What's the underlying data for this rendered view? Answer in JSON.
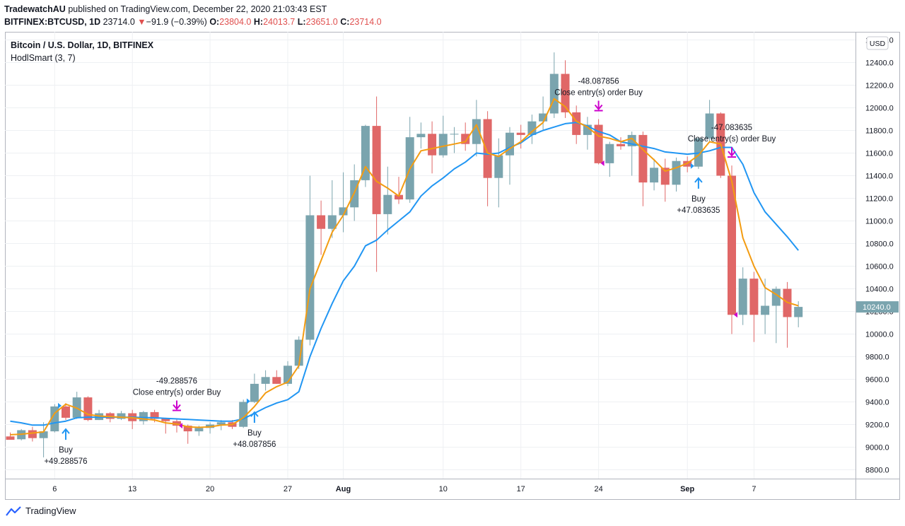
{
  "header": {
    "publisher": "TradewatchAU",
    "published_text": "published on TradingView.com, December 22, 2020 21:03:43 EST",
    "symbol": "BITFINEX:BTCUSD, 1D",
    "last": "23714.0",
    "change": "−91.9 (−0.39%)",
    "o_label": "O:",
    "o": "23804.0",
    "h_label": "H:",
    "h": "24013.7",
    "l_label": "L:",
    "l": "23651.0",
    "c_label": "C:",
    "c": "23714.0"
  },
  "legend": {
    "title": "Bitcoin / U.S. Dollar, 1D, BITFINEX",
    "indicator": "HodlSmart (3, 7)"
  },
  "footer": {
    "brand": "TradingView"
  },
  "colors": {
    "up": "#7aa4ae",
    "down": "#e06767",
    "fast_ma": "#f39c12",
    "slow_ma": "#2196f3",
    "signal_buy": "#2196f3",
    "signal_close": "#cc00cc"
  },
  "chart_data": {
    "type": "candlestick",
    "currency_button": "USD",
    "price_label": "10240.0",
    "y_ticks": [
      "8800.0",
      "9000.0",
      "9200.0",
      "9400.0",
      "9600.0",
      "9800.0",
      "10000.0",
      "10200.0",
      "10400.0",
      "10600.0",
      "10800.0",
      "11000.0",
      "11200.0",
      "11400.0",
      "11600.0",
      "11800.0",
      "12000.0",
      "12200.0",
      "12400.0",
      "12600.0"
    ],
    "ylim": [
      8680,
      12700
    ],
    "x_ticks": [
      {
        "label": "6",
        "i": 4,
        "bold": false
      },
      {
        "label": "13",
        "i": 11,
        "bold": false
      },
      {
        "label": "20",
        "i": 18,
        "bold": false
      },
      {
        "label": "27",
        "i": 25,
        "bold": false
      },
      {
        "label": "Aug",
        "i": 30,
        "bold": true
      },
      {
        "label": "10",
        "i": 39,
        "bold": false
      },
      {
        "label": "17",
        "i": 46,
        "bold": false
      },
      {
        "label": "24",
        "i": 53,
        "bold": false
      },
      {
        "label": "Sep",
        "i": 61,
        "bold": true
      },
      {
        "label": "7",
        "i": 67,
        "bold": false
      }
    ],
    "candles": [
      [
        9095,
        9130,
        9070,
        9065
      ],
      [
        9070,
        9160,
        9060,
        9150
      ],
      [
        9150,
        9180,
        9050,
        9080
      ],
      [
        9080,
        9220,
        8910,
        9140
      ],
      [
        9140,
        9380,
        9130,
        9360
      ],
      [
        9360,
        9390,
        9240,
        9260
      ],
      [
        9260,
        9490,
        9250,
        9440
      ],
      [
        9440,
        9450,
        9230,
        9240
      ],
      [
        9240,
        9330,
        9240,
        9300
      ],
      [
        9300,
        9310,
        9220,
        9250
      ],
      [
        9250,
        9320,
        9240,
        9300
      ],
      [
        9300,
        9330,
        9160,
        9230
      ],
      [
        9230,
        9320,
        9200,
        9310
      ],
      [
        9310,
        9330,
        9220,
        9250
      ],
      [
        9250,
        9260,
        9120,
        9230
      ],
      [
        9230,
        9250,
        9130,
        9190
      ],
      [
        9190,
        9200,
        9030,
        9140
      ],
      [
        9140,
        9190,
        9100,
        9170
      ],
      [
        9170,
        9220,
        9120,
        9200
      ],
      [
        9200,
        9240,
        9150,
        9220
      ],
      [
        9220,
        9240,
        9160,
        9180
      ],
      [
        9180,
        9420,
        9170,
        9400
      ],
      [
        9400,
        9650,
        9390,
        9560
      ],
      [
        9560,
        9680,
        9500,
        9620
      ],
      [
        9620,
        9680,
        9560,
        9560
      ],
      [
        9560,
        9760,
        9540,
        9720
      ],
      [
        9720,
        9980,
        9690,
        9950
      ],
      [
        9950,
        11400,
        9900,
        11050
      ],
      [
        11050,
        11180,
        10700,
        10930
      ],
      [
        10930,
        11360,
        10850,
        11050
      ],
      [
        11050,
        11430,
        10900,
        11120
      ],
      [
        11120,
        11500,
        11000,
        11360
      ],
      [
        11360,
        11850,
        11300,
        11840
      ],
      [
        11840,
        12100,
        10550,
        11060
      ],
      [
        11060,
        11480,
        10880,
        11230
      ],
      [
        11230,
        11390,
        11150,
        11190
      ],
      [
        11190,
        11920,
        11160,
        11740
      ],
      [
        11740,
        11870,
        11640,
        11770
      ],
      [
        11770,
        11880,
        11420,
        11580
      ],
      [
        11580,
        11930,
        11560,
        11770
      ],
      [
        11770,
        11830,
        11600,
        11770
      ],
      [
        11770,
        11870,
        11620,
        11680
      ],
      [
        11680,
        12070,
        11570,
        11900
      ],
      [
        11900,
        11970,
        11130,
        11380
      ],
      [
        11380,
        11730,
        11120,
        11580
      ],
      [
        11580,
        11830,
        11320,
        11780
      ],
      [
        11780,
        11850,
        11640,
        11760
      ],
      [
        11760,
        11940,
        11680,
        11880
      ],
      [
        11880,
        12100,
        11800,
        11950
      ],
      [
        11950,
        12490,
        11910,
        12300
      ],
      [
        12300,
        12420,
        11910,
        11960
      ],
      [
        11960,
        12020,
        11680,
        11760
      ],
      [
        11760,
        11920,
        11630,
        11850
      ],
      [
        11850,
        11900,
        11500,
        11510
      ],
      [
        11510,
        11700,
        11390,
        11680
      ],
      [
        11680,
        11740,
        11630,
        11660
      ],
      [
        11660,
        11790,
        11400,
        11760
      ],
      [
        11760,
        11790,
        11130,
        11340
      ],
      [
        11340,
        11550,
        11270,
        11470
      ],
      [
        11470,
        11550,
        11170,
        11320
      ],
      [
        11320,
        11560,
        11260,
        11530
      ],
      [
        11530,
        11570,
        11430,
        11480
      ],
      [
        11480,
        11740,
        11460,
        11730
      ],
      [
        11730,
        12070,
        11690,
        11950
      ],
      [
        11950,
        11960,
        11380,
        11400
      ],
      [
        11400,
        11490,
        10000,
        10170
      ],
      [
        10170,
        10590,
        10080,
        10490
      ],
      [
        10490,
        10550,
        9930,
        10170
      ],
      [
        10170,
        10490,
        10000,
        10250
      ],
      [
        10250,
        10420,
        9920,
        10400
      ],
      [
        10400,
        10460,
        9880,
        10150
      ],
      [
        10150,
        10290,
        10060,
        10240
      ]
    ],
    "fast_ma": [
      9110,
      9115,
      9125,
      9135,
      9300,
      9380,
      9345,
      9290,
      9275,
      9270,
      9265,
      9260,
      9250,
      9240,
      9215,
      9205,
      9180,
      9175,
      9180,
      9195,
      9200,
      9260,
      9360,
      9480,
      9535,
      9575,
      9720,
      10400,
      10650,
      10900,
      11050,
      11250,
      11480,
      11350,
      11290,
      11220,
      11460,
      11620,
      11640,
      11660,
      11680,
      11700,
      11850,
      11600,
      11570,
      11640,
      11700,
      11790,
      11870,
      12080,
      12010,
      11880,
      11830,
      11750,
      11730,
      11700,
      11730,
      11630,
      11540,
      11440,
      11470,
      11510,
      11580,
      11700,
      11680,
      11350,
      10850,
      10600,
      10410,
      10350,
      10280,
      10250
    ],
    "slow_ma": [
      9230,
      9215,
      9195,
      9195,
      9215,
      9230,
      9260,
      9265,
      9265,
      9265,
      9265,
      9265,
      9262,
      9260,
      9255,
      9250,
      9245,
      9240,
      9235,
      9230,
      9230,
      9250,
      9300,
      9350,
      9390,
      9420,
      9490,
      9800,
      10050,
      10270,
      10470,
      10600,
      10780,
      10830,
      10920,
      11000,
      11080,
      11220,
      11310,
      11380,
      11460,
      11520,
      11600,
      11590,
      11600,
      11650,
      11690,
      11760,
      11800,
      11830,
      11860,
      11870,
      11840,
      11790,
      11760,
      11700,
      11680,
      11660,
      11640,
      11610,
      11600,
      11590,
      11600,
      11620,
      11650,
      11650,
      11500,
      11250,
      11080,
      10970,
      10860,
      10740
    ],
    "signals": [
      {
        "type": "buy",
        "i": 5,
        "label1": "Buy",
        "label2": "+49.288576"
      },
      {
        "type": "close",
        "i": 15,
        "label1": "-49.288576",
        "label2": "Close entry(s) order Buy"
      },
      {
        "type": "buy",
        "i": 22,
        "label1": "Buy",
        "label2": "+48.087856"
      },
      {
        "type": "close",
        "i": 53,
        "label1": "-48.087856",
        "label2": "Close entry(s) order Buy"
      },
      {
        "type": "buy",
        "i": 62,
        "label1": "Buy",
        "label2": "+47.083635"
      },
      {
        "type": "close",
        "i": 65,
        "label1": "-47.083635",
        "label2": "Close entry(s) order Buy"
      }
    ]
  }
}
